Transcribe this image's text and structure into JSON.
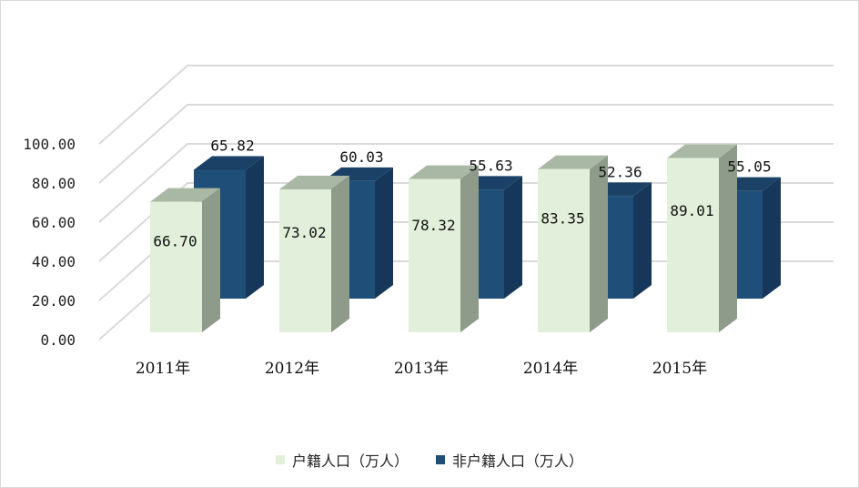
{
  "chart_data": {
    "type": "bar",
    "categories": [
      "2011年",
      "2012年",
      "2013年",
      "2014年",
      "2015年"
    ],
    "series": [
      {
        "name": "户籍人口（万人）",
        "values": [
          66.7,
          73.02,
          78.32,
          83.35,
          89.01
        ],
        "labels": [
          "66.70",
          "73.02",
          "78.32",
          "83.35",
          "89.01"
        ]
      },
      {
        "name": "非户籍人口（万人）",
        "values": [
          65.82,
          60.03,
          55.63,
          52.36,
          55.05
        ],
        "labels": [
          "65.82",
          "60.03",
          "55.63",
          "52.36",
          "55.05"
        ]
      }
    ],
    "ylim": [
      0,
      100
    ],
    "yticks": [
      "0.00",
      "20.00",
      "40.00",
      "60.00",
      "80.00",
      "100.00"
    ],
    "grid": true,
    "three_d": true,
    "legend_position": "bottom",
    "colors": {
      "series1_front": "#e2efda",
      "series1_side": "#8e9a8a",
      "series1_top": "#a9b8a4",
      "series2_front": "#1f4e79",
      "series2_side": "#16365a",
      "series2_top": "#1b4266",
      "grid": "#d9d9d9"
    }
  }
}
